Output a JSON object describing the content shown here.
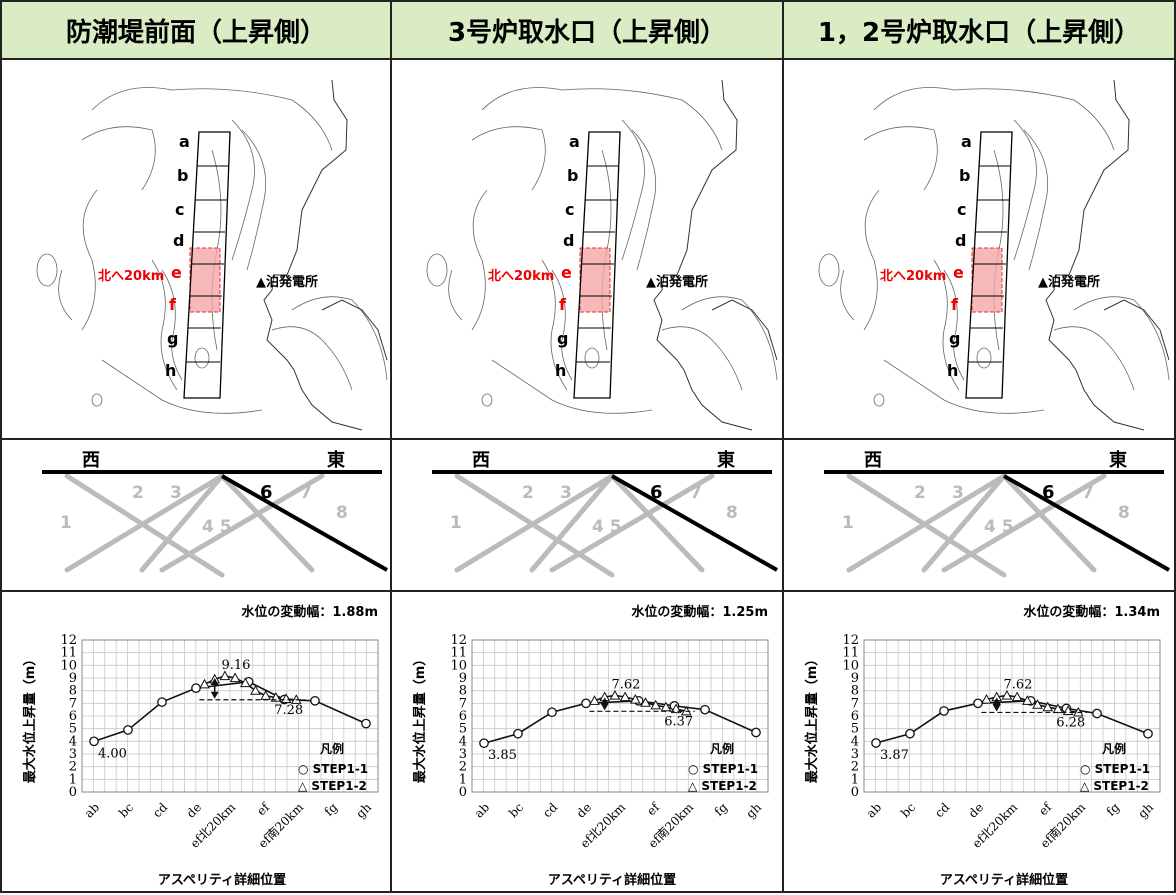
{
  "panels": [
    {
      "title": "防潮堤前面（上昇側）",
      "map": {
        "segment_labels": [
          "a",
          "b",
          "c",
          "d",
          "e",
          "f",
          "g",
          "h"
        ],
        "north_label": "北へ20km",
        "plant_label": "▲泊発電所"
      },
      "section": {
        "west": "西",
        "east": "東",
        "numbers": [
          "1",
          "2",
          "3",
          "4 5",
          "6",
          "7",
          "8"
        ]
      },
      "chart": {
        "variation_label": "水位の変動幅：1.88m",
        "ylabel": "最大水位上昇量（m）",
        "xlabel": "アスペリティ詳細位置",
        "annot_max": "9.16",
        "annot_min": "7.28",
        "annot_start": "4.00",
        "legend_title": "凡例",
        "legend_s1": "○ STEP1-1",
        "legend_s2": "△ STEP1-2"
      }
    },
    {
      "title": "3号炉取水口（上昇側）",
      "map": {
        "segment_labels": [
          "a",
          "b",
          "c",
          "d",
          "e",
          "f",
          "g",
          "h"
        ],
        "north_label": "北へ20km",
        "plant_label": "▲泊発電所"
      },
      "section": {
        "west": "西",
        "east": "東",
        "numbers": [
          "1",
          "2",
          "3",
          "4 5",
          "6",
          "7",
          "8"
        ]
      },
      "chart": {
        "variation_label": "水位の変動幅：1.25m",
        "ylabel": "最大水位上昇量（m）",
        "xlabel": "アスペリティ詳細位置",
        "annot_max": "7.62",
        "annot_min": "6.37",
        "annot_start": "3.85",
        "legend_title": "凡例",
        "legend_s1": "○ STEP1-1",
        "legend_s2": "△ STEP1-2"
      }
    },
    {
      "title": "1，2号炉取水口（上昇側）",
      "map": {
        "segment_labels": [
          "a",
          "b",
          "c",
          "d",
          "e",
          "f",
          "g",
          "h"
        ],
        "north_label": "北へ20km",
        "plant_label": "▲泊発電所"
      },
      "section": {
        "west": "西",
        "east": "東",
        "numbers": [
          "1",
          "2",
          "3",
          "4 5",
          "6",
          "7",
          "8"
        ]
      },
      "chart": {
        "variation_label": "水位の変動幅：1.34m",
        "ylabel": "最大水位上昇量（m）",
        "xlabel": "アスペリティ詳細位置",
        "annot_max": "7.62",
        "annot_min": "6.28",
        "annot_start": "3.87",
        "legend_title": "凡例",
        "legend_s1": "○ STEP1-1",
        "legend_s2": "△ STEP1-2"
      }
    }
  ],
  "chart_data": [
    {
      "type": "line",
      "categories": [
        "ab",
        "bc",
        "cd",
        "de",
        "ef北20km",
        "ef",
        "ef南20km",
        "fg",
        "gh"
      ],
      "ylim": [
        0,
        12
      ],
      "yticks": [
        "0",
        "1",
        "2",
        "3",
        "4",
        "5",
        "6",
        "7",
        "8",
        "9",
        "10",
        "11",
        "12"
      ],
      "series": [
        {
          "name": "STEP1-1",
          "points": [
            [
              0,
              4.0
            ],
            [
              1,
              4.9
            ],
            [
              2,
              7.1
            ],
            [
              3,
              8.2
            ],
            [
              4.55,
              8.7
            ],
            [
              5.6,
              7.3
            ],
            [
              6.5,
              7.2
            ],
            [
              8,
              5.4
            ]
          ]
        },
        {
          "name": "STEP1-2",
          "points": [
            [
              3.25,
              8.5
            ],
            [
              3.55,
              8.9
            ],
            [
              3.85,
              9.16
            ],
            [
              4.15,
              9.0
            ],
            [
              4.45,
              8.6
            ],
            [
              4.75,
              8.0
            ],
            [
              5.05,
              7.6
            ],
            [
              5.35,
              7.45
            ],
            [
              5.65,
              7.35
            ],
            [
              5.95,
              7.28
            ]
          ]
        }
      ],
      "max_value": 9.16,
      "min_value": 7.28,
      "variation": 1.88
    },
    {
      "type": "line",
      "categories": [
        "ab",
        "bc",
        "cd",
        "de",
        "ef北20km",
        "ef",
        "ef南20km",
        "fg",
        "gh"
      ],
      "ylim": [
        0,
        12
      ],
      "yticks": [
        "0",
        "1",
        "2",
        "3",
        "4",
        "5",
        "6",
        "7",
        "8",
        "9",
        "10",
        "11",
        "12"
      ],
      "series": [
        {
          "name": "STEP1-1",
          "points": [
            [
              0,
              3.85
            ],
            [
              1,
              4.6
            ],
            [
              2,
              6.3
            ],
            [
              3,
              7.0
            ],
            [
              4.55,
              7.2
            ],
            [
              5.6,
              6.8
            ],
            [
              6.5,
              6.5
            ],
            [
              8,
              4.7
            ]
          ]
        },
        {
          "name": "STEP1-2",
          "points": [
            [
              3.25,
              7.2
            ],
            [
              3.55,
              7.5
            ],
            [
              3.85,
              7.62
            ],
            [
              4.15,
              7.5
            ],
            [
              4.45,
              7.3
            ],
            [
              4.75,
              7.05
            ],
            [
              5.05,
              6.85
            ],
            [
              5.35,
              6.7
            ],
            [
              5.65,
              6.55
            ],
            [
              5.95,
              6.37
            ]
          ]
        }
      ],
      "max_value": 7.62,
      "min_value": 6.37,
      "variation": 1.25
    },
    {
      "type": "line",
      "categories": [
        "ab",
        "bc",
        "cd",
        "de",
        "ef北20km",
        "ef",
        "ef南20km",
        "fg",
        "gh"
      ],
      "ylim": [
        0,
        12
      ],
      "yticks": [
        "0",
        "1",
        "2",
        "3",
        "4",
        "5",
        "6",
        "7",
        "8",
        "9",
        "10",
        "11",
        "12"
      ],
      "series": [
        {
          "name": "STEP1-1",
          "points": [
            [
              0,
              3.87
            ],
            [
              1,
              4.6
            ],
            [
              2,
              6.4
            ],
            [
              3,
              7.0
            ],
            [
              4.55,
              7.2
            ],
            [
              5.6,
              6.6
            ],
            [
              6.5,
              6.2
            ],
            [
              8,
              4.6
            ]
          ]
        },
        {
          "name": "STEP1-2",
          "points": [
            [
              3.25,
              7.3
            ],
            [
              3.55,
              7.5
            ],
            [
              3.85,
              7.62
            ],
            [
              4.15,
              7.5
            ],
            [
              4.45,
              7.2
            ],
            [
              4.75,
              6.9
            ],
            [
              5.05,
              6.7
            ],
            [
              5.35,
              6.55
            ],
            [
              5.65,
              6.4
            ],
            [
              5.95,
              6.28
            ]
          ]
        }
      ],
      "max_value": 7.62,
      "min_value": 6.28,
      "variation": 1.34
    }
  ]
}
